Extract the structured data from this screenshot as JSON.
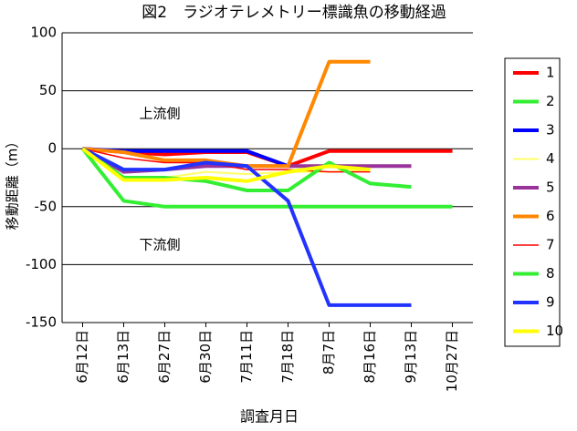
{
  "chart_data": {
    "type": "line",
    "title": "図2　ラジオテレメトリー標識魚の移動経過",
    "x_label": "調査月日",
    "y_label": "移動距離（m）",
    "annotations": [
      "上流側",
      "下流側"
    ],
    "categories": [
      "6月12日",
      "6月13日",
      "6月27日",
      "6月30日",
      "7月11日",
      "7月18日",
      "8月7日",
      "8月16日",
      "9月13日",
      "10月27日"
    ],
    "ylim": [
      -150,
      100
    ],
    "yticks": [
      -150,
      -100,
      -50,
      0,
      50,
      100
    ],
    "grid": true,
    "series": [
      {
        "name": "1",
        "color": "#ff0000",
        "line_width": 4,
        "values": [
          0,
          -3,
          -5,
          -3,
          -3,
          -15,
          -2,
          -2,
          -2,
          -2
        ]
      },
      {
        "name": "2",
        "color": "#33ee33",
        "line_width": 4,
        "values": [
          0,
          -45,
          -50,
          -50,
          -50,
          -50,
          -50,
          -50,
          -50,
          -50
        ]
      },
      {
        "name": "3",
        "color": "#0000ff",
        "line_width": 4,
        "values": [
          0,
          -2,
          -2,
          -2,
          -2,
          -15,
          null,
          null,
          null,
          null
        ]
      },
      {
        "name": "4",
        "color": "#ffff66",
        "line_width": 2,
        "values": [
          0,
          -25,
          -25,
          -20,
          -22,
          -20,
          -20,
          -18,
          null,
          null
        ]
      },
      {
        "name": "5",
        "color": "#993399",
        "line_width": 4,
        "values": [
          0,
          -20,
          -18,
          -15,
          -15,
          -15,
          -15,
          -15,
          -15,
          null
        ]
      },
      {
        "name": "6",
        "color": "#ff8800",
        "line_width": 4,
        "values": [
          0,
          -3,
          -10,
          -10,
          -15,
          -15,
          75,
          75,
          null,
          null
        ]
      },
      {
        "name": "7",
        "color": "#ff0000",
        "line_width": 1.5,
        "values": [
          0,
          -8,
          -12,
          -12,
          -18,
          -18,
          -20,
          -20,
          null,
          null
        ]
      },
      {
        "name": "8",
        "color": "#33ee33",
        "line_width": 4,
        "values": [
          0,
          -25,
          -25,
          -28,
          -36,
          -36,
          -12,
          -30,
          -33,
          null
        ]
      },
      {
        "name": "9",
        "color": "#2233ff",
        "line_width": 4,
        "values": [
          0,
          -18,
          -18,
          -12,
          -15,
          -45,
          -135,
          -135,
          -135,
          null
        ]
      },
      {
        "name": "10",
        "color": "#ffff00",
        "line_width": 4,
        "values": [
          0,
          -27,
          -27,
          -25,
          -28,
          -20,
          -15,
          -18,
          null,
          null
        ]
      }
    ]
  }
}
